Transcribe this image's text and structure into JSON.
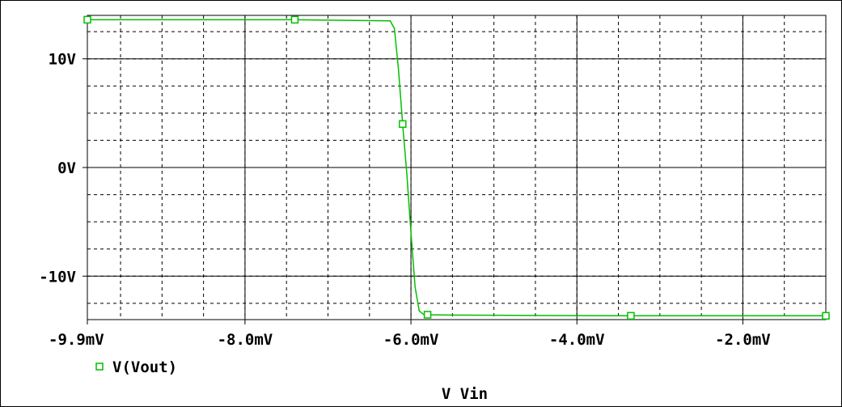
{
  "chart_data": {
    "type": "line",
    "title": "",
    "xlabel": "V_Vin",
    "ylabel": "",
    "xlim": [
      -9.9,
      -1.0
    ],
    "ylim": [
      -14.0,
      14.0
    ],
    "x_unit": "mV",
    "y_unit": "V",
    "grid": true,
    "legend_position": "bottom-left",
    "x_tick_labels": [
      {
        "value": -9.9,
        "label": "-9.9mV"
      },
      {
        "value": -8.0,
        "label": "-8.0mV"
      },
      {
        "value": -6.0,
        "label": "-6.0mV"
      },
      {
        "value": -4.0,
        "label": "-4.0mV"
      },
      {
        "value": -2.0,
        "label": "-2.0mV"
      }
    ],
    "y_tick_labels": [
      {
        "value": 10,
        "label": "10V"
      },
      {
        "value": 0,
        "label": "0V"
      },
      {
        "value": -10,
        "label": "-10V"
      }
    ],
    "x_grid_values": [
      -9.5,
      -9.0,
      -8.5,
      -8.0,
      -7.5,
      -7.0,
      -6.5,
      -6.0,
      -5.5,
      -5.0,
      -4.5,
      -4.0,
      -3.5,
      -3.0,
      -2.5,
      -2.0,
      -1.5
    ],
    "y_grid_values": [
      12.5,
      10,
      7.5,
      5,
      2.5,
      0,
      -2.5,
      -5,
      -7.5,
      -10,
      -12.5
    ],
    "series": [
      {
        "name": "V(Vout)",
        "color": "#00c000",
        "marker": "hollow-square",
        "x": [
          -9.9,
          -7.4,
          -6.25,
          -6.2,
          -6.15,
          -6.1,
          -6.05,
          -6.0,
          -5.95,
          -5.9,
          -5.85,
          -5.8,
          -5.5,
          -4.5,
          -3.35,
          -2.0,
          -1.0
        ],
        "y": [
          13.6,
          13.6,
          13.5,
          12.8,
          9.0,
          4.0,
          -0.5,
          -6.0,
          -11.0,
          -13.2,
          -13.5,
          -13.55,
          -13.58,
          -13.62,
          -13.65,
          -13.65,
          -13.65
        ],
        "marker_x": [
          -9.9,
          -7.4,
          -6.1,
          -5.8,
          -3.35,
          -1.0
        ],
        "marker_y": [
          13.6,
          13.6,
          4.0,
          -13.55,
          -13.65,
          -13.65
        ]
      }
    ]
  }
}
